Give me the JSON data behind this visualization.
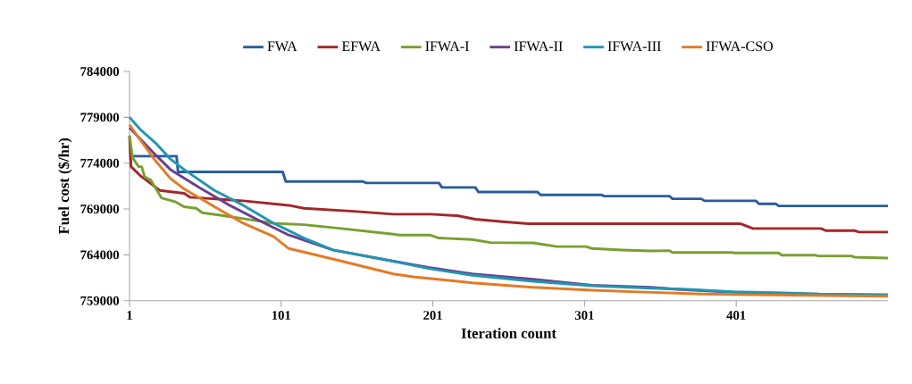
{
  "chart_data": {
    "type": "line",
    "xlabel": "Iteration count",
    "ylabel": "Fuel cost ($/hr)",
    "xlim": [
      1,
      501
    ],
    "xticks": [
      1,
      101,
      201,
      301,
      401
    ],
    "ylim": [
      759000,
      784000
    ],
    "yticks": [
      759000,
      764000,
      769000,
      774000,
      779000,
      784000
    ],
    "grid": false,
    "legend": "top",
    "marker": "none",
    "line_style": "solid",
    "series": [
      {
        "name": "FWA",
        "color": "#2a5c9c",
        "x": [
          1,
          32,
          33,
          102,
          104,
          155,
          157,
          205,
          207,
          229,
          231,
          270,
          272,
          312,
          314,
          357,
          359,
          378,
          380,
          414,
          416,
          427,
          429,
          501
        ],
        "values": [
          774760,
          774760,
          773040,
          773040,
          772000,
          772000,
          771840,
          771840,
          771350,
          771350,
          770850,
          770850,
          770540,
          770540,
          770400,
          770400,
          770110,
          770110,
          769890,
          769890,
          769570,
          769570,
          769330,
          769330
        ]
      },
      {
        "name": "EFWA",
        "color": "#a3262a",
        "x": [
          1,
          2,
          8,
          21,
          37,
          41,
          76,
          106,
          116,
          149,
          175,
          200,
          217,
          229,
          247,
          264,
          302,
          404,
          412,
          457,
          460,
          479,
          482,
          501
        ],
        "values": [
          776900,
          773620,
          772650,
          771030,
          770700,
          770280,
          769890,
          769400,
          769080,
          768750,
          768430,
          768430,
          768270,
          767880,
          767620,
          767390,
          767390,
          767390,
          766870,
          766870,
          766640,
          766640,
          766480,
          766480
        ]
      },
      {
        "name": "IFWA-I",
        "color": "#78a030",
        "x": [
          1,
          3,
          7,
          9,
          11,
          15,
          22,
          31,
          37,
          45,
          49,
          63,
          76,
          96,
          116,
          135,
          175,
          179,
          199,
          205,
          227,
          239,
          267,
          282,
          302,
          306,
          326,
          345,
          357,
          359,
          398,
          400,
          429,
          431,
          453,
          455,
          477,
          479,
          501
        ],
        "values": [
          777030,
          774600,
          773620,
          773620,
          772500,
          772170,
          770210,
          769800,
          769240,
          769080,
          768590,
          768270,
          767940,
          767450,
          767290,
          766970,
          766250,
          766160,
          766160,
          765830,
          765670,
          765340,
          765300,
          764920,
          764900,
          764690,
          764530,
          764430,
          764460,
          764260,
          764260,
          764200,
          764200,
          763970,
          763970,
          763880,
          763880,
          763750,
          763650
        ]
      },
      {
        "name": "IFWA-II",
        "color": "#6a3f8e",
        "x": [
          1,
          18,
          28,
          47,
          67,
          86,
          106,
          135,
          175,
          198,
          227,
          267,
          306,
          345,
          362,
          412,
          501
        ],
        "values": [
          777860,
          774930,
          773300,
          771350,
          769400,
          767780,
          766160,
          764530,
          763300,
          762640,
          761920,
          761340,
          760690,
          760460,
          760240,
          759820,
          759590
        ]
      },
      {
        "name": "IFWA-III",
        "color": "#2096b2",
        "x": [
          1,
          8,
          18,
          28,
          37,
          57,
          76,
          96,
          116,
          135,
          175,
          198,
          227,
          267,
          306,
          345,
          369,
          398,
          427,
          456,
          501
        ],
        "values": [
          779000,
          777690,
          776230,
          774440,
          773300,
          771030,
          769400,
          767450,
          765830,
          764530,
          763290,
          762510,
          761770,
          761120,
          760630,
          760360,
          760240,
          759970,
          759880,
          759720,
          759650
        ]
      },
      {
        "name": "IFWA-CSO",
        "color": "#e47a24",
        "x": [
          1,
          8,
          18,
          28,
          37,
          57,
          76,
          96,
          106,
          135,
          175,
          188,
          227,
          267,
          306,
          345,
          378,
          437,
          501
        ],
        "values": [
          778180,
          776550,
          774280,
          772330,
          771190,
          769240,
          767450,
          765990,
          764690,
          763550,
          761920,
          761600,
          760950,
          760460,
          760140,
          759910,
          759720,
          759590,
          759490
        ]
      }
    ]
  }
}
